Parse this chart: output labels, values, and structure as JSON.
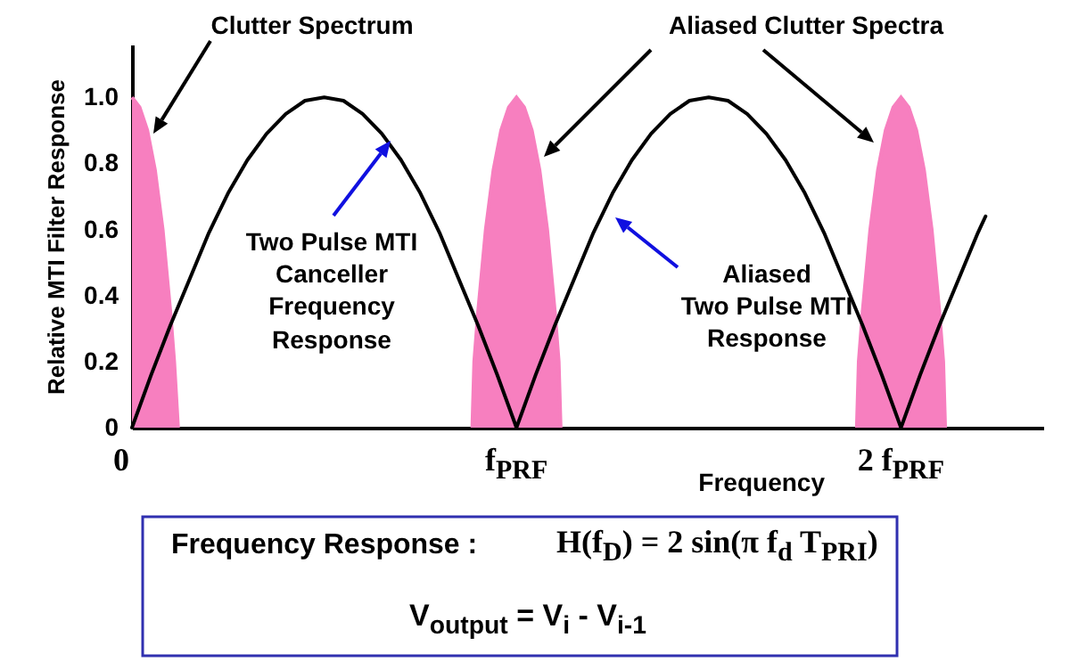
{
  "chart_data": {
    "type": "line",
    "xlabel": "Frequency",
    "ylabel": "Relative MTI Filter Response",
    "xlim": [
      0,
      2.37
    ],
    "ylim": [
      0,
      1.16
    ],
    "xticks": [
      0,
      {
        "value": 1,
        "label": "f$_{PRF}$"
      },
      {
        "value": 2,
        "label": "2 f$_{PRF}$"
      }
    ],
    "yticks": [
      0,
      0.2,
      0.4,
      0.6,
      0.8,
      {
        "value": 1,
        "label": "1.0"
      }
    ],
    "series": [
      {
        "type": "area",
        "color": "#f77fbf",
        "x": [
          0,
          0.02,
          0.04,
          0.06,
          0.08,
          0.1,
          0.11,
          0.115,
          0.12
        ],
        "values": [
          1,
          0.97,
          0.9,
          0.78,
          0.6,
          0.35,
          0.2,
          0.1,
          0
        ]
      },
      {
        "type": "area",
        "color": "#f77fbf",
        "x": [
          0.885,
          0.89,
          0.9,
          0.92,
          0.94,
          0.96,
          0.98,
          1,
          1.02,
          1.04,
          1.06,
          1.08,
          1.1,
          1.11,
          1.115
        ],
        "values": [
          0,
          0.2,
          0.35,
          0.6,
          0.78,
          0.9,
          0.97,
          1,
          0.97,
          0.9,
          0.78,
          0.6,
          0.35,
          0.2,
          0
        ]
      },
      {
        "type": "area",
        "color": "#f77fbf",
        "x": [
          1.885,
          1.89,
          1.9,
          1.92,
          1.94,
          1.96,
          1.98,
          2,
          2.02,
          2.04,
          2.06,
          2.08,
          2.1,
          2.11,
          2.115
        ],
        "values": [
          0,
          0.2,
          0.35,
          0.6,
          0.78,
          0.9,
          0.97,
          1,
          0.97,
          0.9,
          0.78,
          0.6,
          0.35,
          0.2,
          0
        ]
      },
      {
        "color": "#000000",
        "x": [
          0,
          0.05,
          0.1,
          0.15,
          0.2,
          0.25,
          0.3,
          0.35,
          0.4,
          0.45,
          0.5,
          0.55,
          0.6,
          0.65,
          0.7,
          0.75,
          0.8,
          0.85,
          0.9,
          0.95,
          1,
          1.05,
          1.1,
          1.15,
          1.2,
          1.25,
          1.3,
          1.35,
          1.4,
          1.45,
          1.5,
          1.55,
          1.6,
          1.65,
          1.7,
          1.75,
          1.8,
          1.85,
          1.9,
          1.95,
          2,
          2.05,
          2.1,
          2.15,
          2.2,
          2.22
        ],
        "values": [
          0,
          0.16,
          0.31,
          0.45,
          0.59,
          0.71,
          0.81,
          0.89,
          0.95,
          0.99,
          1,
          0.99,
          0.95,
          0.89,
          0.81,
          0.71,
          0.59,
          0.45,
          0.31,
          0.16,
          0,
          0.16,
          0.31,
          0.45,
          0.59,
          0.71,
          0.81,
          0.89,
          0.95,
          0.99,
          1,
          0.99,
          0.95,
          0.89,
          0.81,
          0.71,
          0.59,
          0.45,
          0.31,
          0.16,
          0,
          0.16,
          0.31,
          0.45,
          0.59,
          0.64
        ]
      }
    ],
    "annotations": [
      "Clutter Spectrum",
      "Aliased Clutter Spectra",
      "Two Pulse MTI\nCanceller\nFrequency\nResponse",
      "Aliased\nTwo Pulse MTI\nResponse",
      "Frequency Response :",
      "H(f$_{D}$) = 2 sin(π f$_{d}$ T$_{PRI}$)",
      "V$_{output}$ = V$_{i}$ - V$_{i-1}$"
    ]
  }
}
